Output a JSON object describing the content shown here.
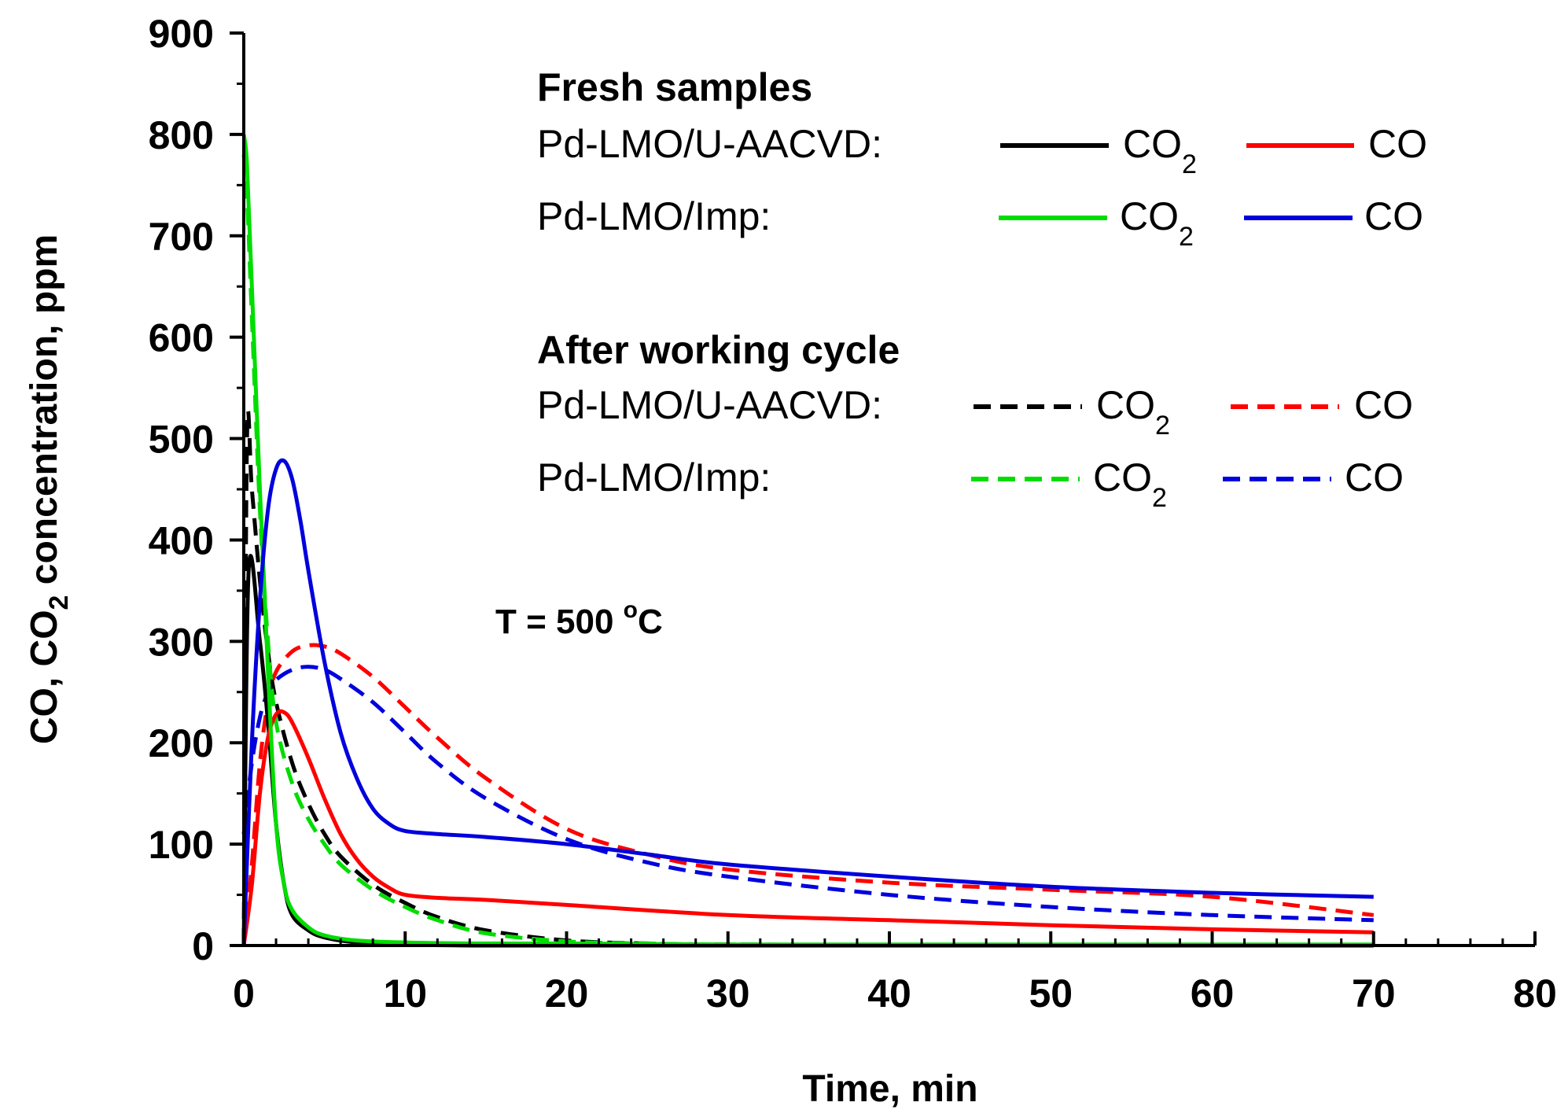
{
  "chart_data": {
    "type": "line",
    "title": "",
    "xlabel": "Time, min",
    "ylabel": "CO, CO2 concentration, ppm",
    "ylabel_parts": {
      "a": "CO, CO",
      "sub": "2",
      "b": " concentration, ppm"
    },
    "xlim": [
      0,
      80
    ],
    "ylim": [
      0,
      900
    ],
    "xticks": [
      0,
      10,
      20,
      30,
      40,
      50,
      60,
      70,
      80
    ],
    "yticks": [
      0,
      100,
      200,
      300,
      400,
      500,
      600,
      700,
      800,
      900
    ],
    "annotation": {
      "text_a": "T = 500 ",
      "sup": "o",
      "text_b": "C"
    },
    "legend": {
      "fresh_heading": "Fresh samples",
      "after_heading": "After working cycle",
      "rows": [
        {
          "label": "Pd-LMO/U-AACVD:",
          "dash": "solid",
          "co2_color": "#000000",
          "co_color": "#ff0000"
        },
        {
          "label": "Pd-LMO/Imp:",
          "dash": "solid",
          "co2_color": "#00dd00",
          "co_color": "#0000dd"
        },
        {
          "label": "Pd-LMO/U-AACVD:",
          "dash": "dashed",
          "co2_color": "#000000",
          "co_color": "#ff0000"
        },
        {
          "label": "Pd-LMO/Imp:",
          "dash": "dashed",
          "co2_color": "#00dd00",
          "co_color": "#0000dd"
        }
      ],
      "co2_main": "CO",
      "co2_sub": "2",
      "co_label": "CO"
    },
    "series": [
      {
        "name": "Fresh Pd-LMO/U-AACVD CO2",
        "color": "#000000",
        "dash": "solid",
        "x": [
          0,
          0.3,
          1,
          1.5,
          2,
          2.5,
          3,
          4,
          5,
          7,
          10,
          15,
          20,
          30,
          50,
          70
        ],
        "y": [
          0,
          370,
          300,
          220,
          120,
          60,
          30,
          15,
          8,
          3,
          1,
          0,
          0,
          0,
          0,
          0
        ]
      },
      {
        "name": "Fresh Pd-LMO/U-AACVD CO",
        "color": "#ff0000",
        "dash": "solid",
        "x": [
          0,
          0.5,
          1,
          1.5,
          2,
          2.5,
          3,
          4,
          5,
          6,
          7,
          8,
          9,
          10,
          12,
          15,
          20,
          30,
          40,
          50,
          60,
          70
        ],
        "y": [
          0,
          60,
          150,
          205,
          228,
          230,
          220,
          185,
          145,
          110,
          85,
          68,
          57,
          50,
          47,
          45,
          40,
          30,
          25,
          20,
          16,
          13
        ]
      },
      {
        "name": "Fresh Pd-LMO/Imp CO2",
        "color": "#00dd00",
        "dash": "solid",
        "x": [
          0,
          0.2,
          0.5,
          1,
          1.5,
          2,
          2.5,
          3,
          4,
          5,
          7,
          10,
          15,
          20,
          30,
          50,
          70
        ],
        "y": [
          800,
          770,
          650,
          450,
          270,
          120,
          60,
          35,
          18,
          10,
          5,
          3,
          2,
          2,
          1,
          1,
          1
        ]
      },
      {
        "name": "Fresh Pd-LMO/Imp CO",
        "color": "#0000dd",
        "dash": "solid",
        "x": [
          0,
          0.5,
          1,
          1.5,
          2,
          2.5,
          3,
          3.5,
          4,
          5,
          6,
          7,
          8,
          9,
          10,
          12,
          15,
          20,
          25,
          30,
          40,
          50,
          60,
          70
        ],
        "y": [
          0,
          200,
          340,
          430,
          470,
          478,
          460,
          420,
          370,
          280,
          210,
          165,
          135,
          120,
          113,
          110,
          107,
          100,
          90,
          80,
          68,
          58,
          52,
          48
        ]
      },
      {
        "name": "After cycle Pd-LMO/U-AACVD CO2",
        "color": "#000000",
        "dash": "dashed",
        "x": [
          0,
          0.2,
          0.5,
          1,
          1.5,
          2,
          3,
          4,
          5,
          6,
          8,
          10,
          12,
          15,
          20,
          25,
          30,
          50,
          70
        ],
        "y": [
          0,
          500,
          450,
          360,
          290,
          240,
          180,
          140,
          110,
          88,
          60,
          42,
          28,
          15,
          5,
          2,
          1,
          0,
          0
        ]
      },
      {
        "name": "After cycle Pd-LMO/U-AACVD CO",
        "color": "#ff0000",
        "dash": "dashed",
        "x": [
          0,
          0.5,
          1,
          1.5,
          2,
          3,
          4,
          5,
          6,
          8,
          10,
          12,
          15,
          20,
          25,
          30,
          40,
          50,
          60,
          70
        ],
        "y": [
          0,
          80,
          180,
          240,
          270,
          290,
          296,
          295,
          288,
          265,
          235,
          205,
          165,
          115,
          90,
          75,
          62,
          55,
          48,
          30
        ]
      },
      {
        "name": "After cycle Pd-LMO/Imp CO2",
        "color": "#00dd00",
        "dash": "dashed",
        "x": [
          0,
          0.2,
          0.5,
          1,
          1.5,
          2,
          3,
          4,
          5,
          6,
          8,
          10,
          12,
          15,
          20,
          25,
          30,
          50,
          70
        ],
        "y": [
          780,
          740,
          620,
          430,
          300,
          220,
          160,
          125,
          100,
          80,
          55,
          38,
          25,
          12,
          4,
          2,
          1,
          0,
          0
        ]
      },
      {
        "name": "After cycle Pd-LMO/Imp CO",
        "color": "#0000dd",
        "dash": "dashed",
        "x": [
          0,
          0.5,
          1,
          1.5,
          2,
          3,
          4,
          5,
          6,
          8,
          10,
          12,
          15,
          20,
          25,
          30,
          40,
          50,
          60,
          70
        ],
        "y": [
          110,
          180,
          225,
          250,
          262,
          272,
          275,
          272,
          263,
          240,
          210,
          180,
          145,
          105,
          82,
          68,
          50,
          38,
          30,
          25
        ]
      }
    ]
  }
}
